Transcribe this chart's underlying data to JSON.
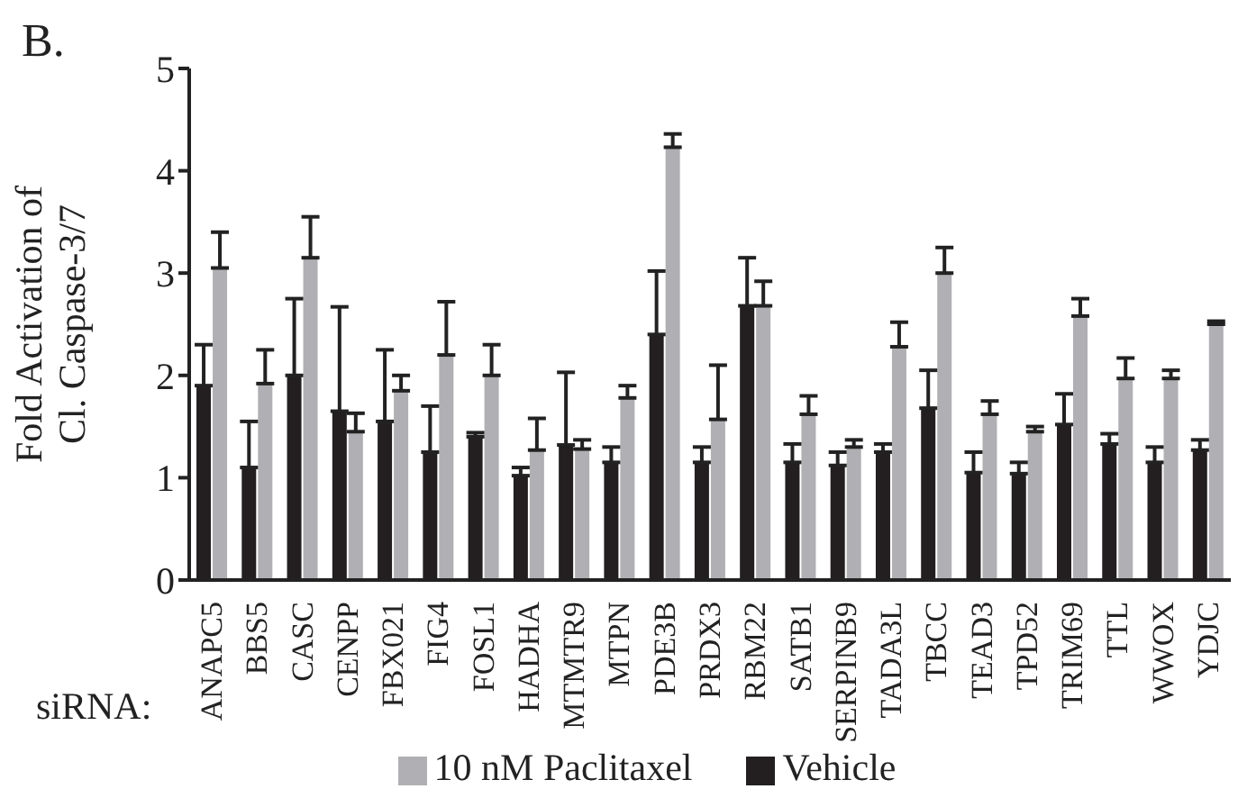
{
  "chart_data": {
    "type": "bar",
    "title": "B.",
    "ylabel": "Fold Activation of\nCl. Caspase-3/7",
    "annotations": [
      "siRNA:"
    ],
    "categories": [
      "ANAPC5",
      "BBS5",
      "CASC",
      "CENPP",
      "FBX021",
      "FIG4",
      "FOSL1",
      "HADHA",
      "MTMTR9",
      "MTPN",
      "PDE3B",
      "PRDX3",
      "RBM22",
      "SATB1",
      "SERPINB9",
      "TADA3L",
      "TBCC",
      "TEAD3",
      "TPD52",
      "TRIM69",
      "TTL",
      "WWOX",
      "YDJC"
    ],
    "series": [
      {
        "name": "Vehicle",
        "color": "#231f20",
        "values": [
          1.9,
          1.1,
          2.0,
          1.65,
          1.55,
          1.25,
          1.4,
          1.02,
          1.32,
          1.15,
          2.4,
          1.15,
          2.68,
          1.15,
          1.12,
          1.25,
          1.68,
          1.05,
          1.04,
          1.52,
          1.33,
          1.15,
          1.27
        ],
        "errors": [
          [
            1.9,
            2.3
          ],
          [
            1.1,
            1.55
          ],
          [
            2.0,
            2.75
          ],
          [
            1.65,
            2.67
          ],
          [
            1.55,
            2.25
          ],
          [
            1.25,
            1.7
          ],
          [
            1.4,
            1.44
          ],
          [
            1.02,
            1.1
          ],
          [
            1.32,
            2.03
          ],
          [
            1.15,
            1.3
          ],
          [
            2.4,
            3.02
          ],
          [
            1.15,
            1.3
          ],
          [
            2.68,
            3.15
          ],
          [
            1.15,
            1.33
          ],
          [
            1.12,
            1.25
          ],
          [
            1.25,
            1.33
          ],
          [
            1.68,
            2.05
          ],
          [
            1.05,
            1.25
          ],
          [
            1.04,
            1.15
          ],
          [
            1.52,
            1.82
          ],
          [
            1.33,
            1.43
          ],
          [
            1.15,
            1.3
          ],
          [
            1.27,
            1.37
          ]
        ]
      },
      {
        "name": "10 nM Paclitaxel",
        "color": "#b0afb3",
        "values": [
          3.05,
          1.92,
          3.15,
          1.45,
          1.85,
          2.2,
          2.0,
          1.27,
          1.28,
          1.78,
          4.23,
          1.57,
          2.68,
          1.62,
          1.3,
          2.28,
          3.0,
          1.62,
          1.45,
          2.58,
          1.97,
          1.97,
          2.5
        ],
        "errors": [
          [
            3.05,
            3.4
          ],
          [
            1.92,
            2.25
          ],
          [
            3.15,
            3.55
          ],
          [
            1.45,
            1.63
          ],
          [
            1.85,
            2.0
          ],
          [
            2.2,
            2.72
          ],
          [
            2.0,
            2.3
          ],
          [
            1.27,
            1.58
          ],
          [
            1.28,
            1.37
          ],
          [
            1.78,
            1.9
          ],
          [
            4.23,
            4.36
          ],
          [
            1.57,
            2.1
          ],
          [
            2.68,
            2.92
          ],
          [
            1.62,
            1.8
          ],
          [
            1.3,
            1.37
          ],
          [
            2.28,
            2.52
          ],
          [
            3.0,
            3.25
          ],
          [
            1.62,
            1.75
          ],
          [
            1.45,
            1.5
          ],
          [
            2.58,
            2.75
          ],
          [
            1.97,
            2.17
          ],
          [
            1.97,
            2.05
          ],
          [
            2.5,
            2.53
          ]
        ]
      }
    ],
    "ylim": [
      0,
      5
    ],
    "yticks": [
      0,
      1,
      2,
      3,
      4,
      5
    ],
    "grid": false,
    "legend": "bottom"
  }
}
